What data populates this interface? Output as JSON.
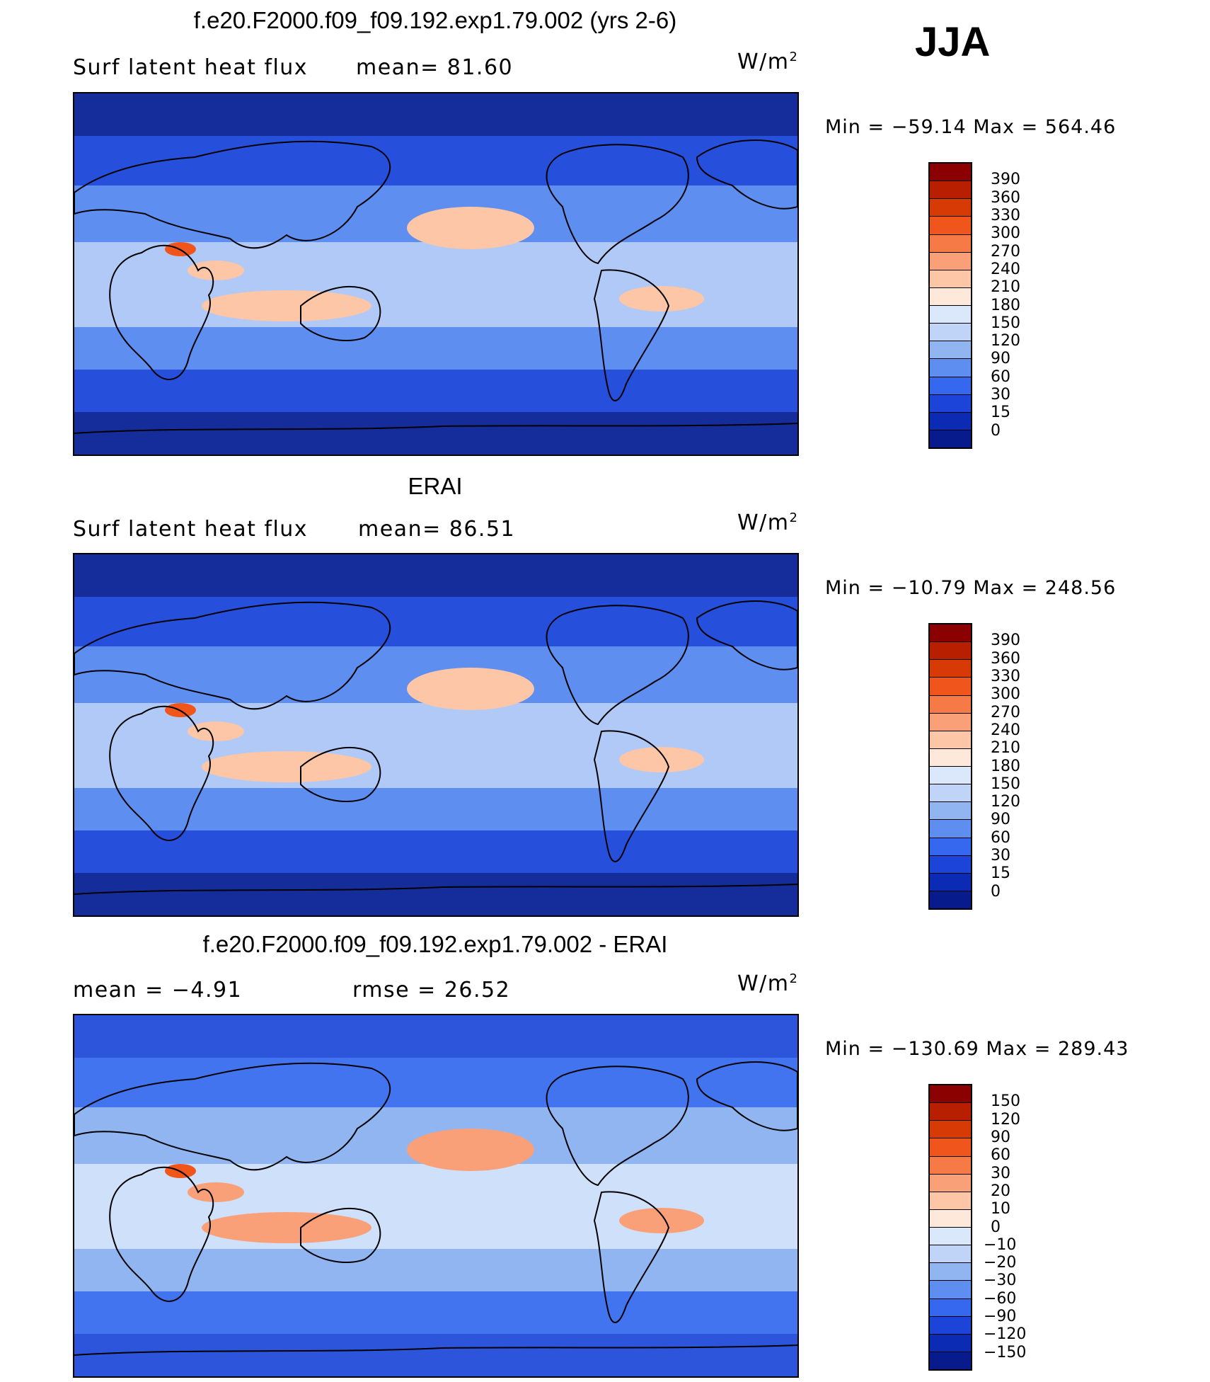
{
  "season": "JJA",
  "panels": [
    {
      "title": "f.e20.F2000.f09_f09.192.exp1.79.002 (yrs 2-6)",
      "left_label": "Surf  latent  heat  flux",
      "mid_label": "mean=  81.60",
      "units": "W/m²",
      "stats": "Min  =  −59.14  Max  =  564.46",
      "colorbar": {
        "labels": [
          "390",
          "360",
          "330",
          "300",
          "270",
          "240",
          "210",
          "180",
          "150",
          "120",
          "90",
          "60",
          "30",
          "15",
          "0"
        ],
        "colors": [
          "#8b0000",
          "#b81e00",
          "#d73a05",
          "#f0561c",
          "#f57a45",
          "#f9a079",
          "#fcc6a7",
          "#fde8da",
          "#dbe8fb",
          "#bfd4f7",
          "#90b5f1",
          "#5e8ef0",
          "#3568ef",
          "#1c44d8",
          "#0c2bb5",
          "#081b8c"
        ]
      },
      "map_palette": {
        "deep": "#081b8c",
        "mid": "#1c44d8",
        "light": "#5e8ef0",
        "pale": "#bfd4f7",
        "warm": "#fcc6a7",
        "hot": "#f0561c"
      }
    },
    {
      "title": "ERAI",
      "left_label": "Surf  latent  heat  flux",
      "mid_label": "mean=  86.51",
      "units": "W/m²",
      "stats": "Min  =  −10.79  Max  =  248.56",
      "colorbar": {
        "labels": [
          "390",
          "360",
          "330",
          "300",
          "270",
          "240",
          "210",
          "180",
          "150",
          "120",
          "90",
          "60",
          "30",
          "15",
          "0"
        ],
        "colors": [
          "#8b0000",
          "#b81e00",
          "#d73a05",
          "#f0561c",
          "#f57a45",
          "#f9a079",
          "#fcc6a7",
          "#fde8da",
          "#dbe8fb",
          "#bfd4f7",
          "#90b5f1",
          "#5e8ef0",
          "#3568ef",
          "#1c44d8",
          "#0c2bb5",
          "#081b8c"
        ]
      },
      "map_palette": {
        "deep": "#081b8c",
        "mid": "#1c44d8",
        "light": "#5e8ef0",
        "pale": "#bfd4f7",
        "warm": "#fcc6a7",
        "hot": "#f0561c"
      }
    },
    {
      "title": "f.e20.F2000.f09_f09.192.exp1.79.002 - ERAI",
      "left_label": "mean  =    −4.91",
      "mid_label": "rmse  =    26.52",
      "units": "W/m²",
      "stats": "Min  =  −130.69  Max  =  289.43",
      "colorbar": {
        "labels": [
          "150",
          "120",
          "90",
          "60",
          "30",
          "20",
          "10",
          "0",
          "−10",
          "−20",
          "−30",
          "−60",
          "−90",
          "−120",
          "−150"
        ],
        "colors": [
          "#8b0000",
          "#b81e00",
          "#d73a05",
          "#f0561c",
          "#f57a45",
          "#f9a079",
          "#fcc6a7",
          "#fde8da",
          "#dbe8fb",
          "#bfd4f7",
          "#90b5f1",
          "#5e8ef0",
          "#3568ef",
          "#1c44d8",
          "#0c2bb5",
          "#081b8c"
        ]
      },
      "map_palette": {
        "deep": "#1c44d8",
        "mid": "#3568ef",
        "light": "#90b5f1",
        "pale": "#dbe8fb",
        "warm": "#f9a079",
        "hot": "#f0561c"
      }
    }
  ]
}
